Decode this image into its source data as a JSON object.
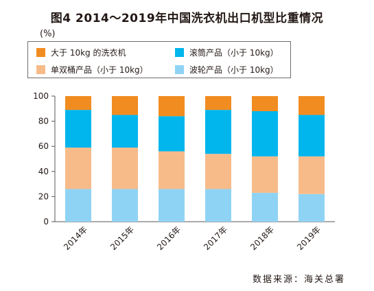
{
  "title": "图4  2014～2019年中国洗衣机出口机型比重情况",
  "unit": "(%)",
  "source": "数据来源：海关总署",
  "chart_data": {
    "type": "bar",
    "stacked": true,
    "title": "图4  2014～2019年中国洗衣机出口机型比重情况",
    "ylabel": "(%)",
    "ylim": [
      0,
      100
    ],
    "yticks": [
      0,
      20,
      40,
      60,
      80,
      100
    ],
    "categories": [
      "2014年",
      "2015年",
      "2016年",
      "2017年",
      "2018年",
      "2019年"
    ],
    "series": [
      {
        "name": "波轮产品（小于10kg）",
        "color": "#8fd3f4",
        "values": [
          26,
          26,
          26,
          26,
          23,
          22
        ]
      },
      {
        "name": "单双桶产品（小于10kg）",
        "color": "#f7bb8a",
        "values": [
          33,
          33,
          30,
          28,
          29,
          30
        ]
      },
      {
        "name": "滚筒产品（小于10kg）",
        "color": "#00b6ed",
        "values": [
          30,
          26,
          28,
          35,
          36,
          33
        ]
      },
      {
        "name": "大于10kg的洗衣机",
        "color": "#f18c20",
        "values": [
          11,
          15,
          16,
          11,
          12,
          15
        ]
      }
    ],
    "legend": [
      {
        "label": "大于 10kg 的洗衣机",
        "color": "#f18c20"
      },
      {
        "label": "滚筒产品（小于 10kg）",
        "color": "#00b6ed"
      },
      {
        "label": "单双桶产品（小于 10kg）",
        "color": "#f7bb8a"
      },
      {
        "label": "波轮产品（小于 10kg）",
        "color": "#8fd3f4"
      }
    ],
    "legend_position": "top",
    "grid": false
  }
}
